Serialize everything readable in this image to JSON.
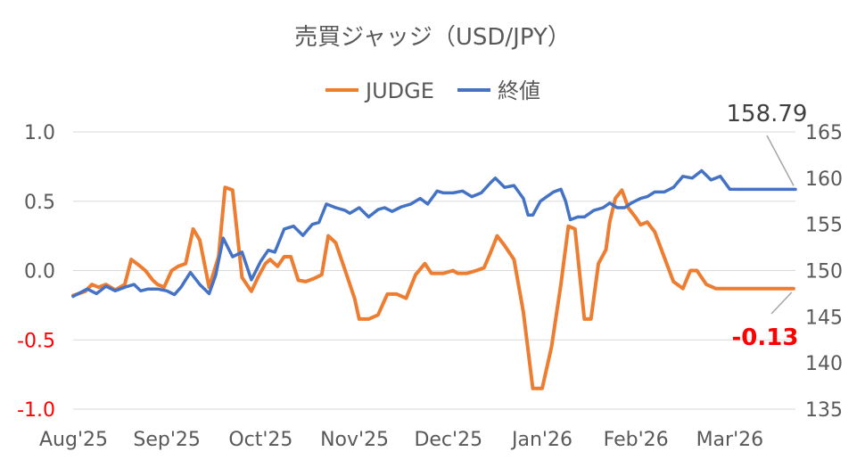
{
  "chart_data": {
    "type": "line",
    "title": "売買ジャッジ（USD/JPY）",
    "legend": {
      "placement": "top"
    },
    "y_left": {
      "ylim": [
        -1.0,
        1.0
      ],
      "ticks": [
        "1.0",
        "0.5",
        "0.0",
        "-0.5",
        "-1.0"
      ],
      "tick_values": [
        1.0,
        0.5,
        0.0,
        -0.5,
        -1.0
      ],
      "negative_tick_color": "#ff0000"
    },
    "y_right": {
      "ylim": [
        135,
        165
      ],
      "ticks": [
        "165",
        "160",
        "155",
        "150",
        "145",
        "140",
        "135"
      ],
      "tick_values": [
        165,
        160,
        155,
        150,
        145,
        140,
        135
      ]
    },
    "x_ticks": [
      "Aug'25",
      "Sep'25",
      "Oct'25",
      "Nov'25",
      "Dec'25",
      "Jan'26",
      "Feb'26",
      "Mar'26"
    ],
    "grid": true,
    "x_range": [
      0,
      7.7
    ],
    "series": [
      {
        "name": "JUDGE",
        "axis": "left",
        "color": "#ed7d31",
        "x": [
          0.0,
          0.13,
          0.2,
          0.27,
          0.35,
          0.45,
          0.55,
          0.62,
          0.7,
          0.77,
          0.85,
          0.9,
          0.97,
          1.05,
          1.12,
          1.2,
          1.28,
          1.35,
          1.45,
          1.55,
          1.62,
          1.7,
          1.8,
          1.9,
          1.97,
          2.05,
          2.1,
          2.18,
          2.25,
          2.32,
          2.4,
          2.48,
          2.56,
          2.65,
          2.72,
          2.8,
          2.9,
          3.0,
          3.05,
          3.15,
          3.25,
          3.35,
          3.45,
          3.55,
          3.65,
          3.75,
          3.82,
          3.95,
          4.05,
          4.1,
          4.2,
          4.3,
          4.38,
          4.45,
          4.52,
          4.6,
          4.7,
          4.8,
          4.9,
          5.0,
          5.1,
          5.2,
          5.28,
          5.35,
          5.45,
          5.52,
          5.6,
          5.68,
          5.72,
          5.78,
          5.85,
          5.92,
          6.0,
          6.05,
          6.12,
          6.2,
          6.3,
          6.4,
          6.5,
          6.58,
          6.65,
          6.75,
          6.85,
          6.95,
          7.05,
          7.15,
          7.25,
          7.3,
          7.4,
          7.5,
          7.6,
          7.68
        ],
        "values": [
          -0.18,
          -0.15,
          -0.1,
          -0.12,
          -0.1,
          -0.14,
          -0.1,
          0.08,
          0.04,
          0.0,
          -0.07,
          -0.1,
          -0.12,
          0.0,
          0.03,
          0.05,
          0.3,
          0.22,
          -0.12,
          0.1,
          0.6,
          0.58,
          -0.05,
          -0.15,
          -0.05,
          0.05,
          0.08,
          0.03,
          0.1,
          0.1,
          -0.07,
          -0.08,
          -0.06,
          -0.03,
          0.25,
          0.2,
          0.0,
          -0.2,
          -0.35,
          -0.35,
          -0.32,
          -0.17,
          -0.17,
          -0.2,
          -0.03,
          0.05,
          -0.02,
          -0.02,
          0.0,
          -0.02,
          -0.02,
          0.0,
          0.02,
          0.13,
          0.25,
          0.18,
          0.08,
          -0.3,
          -0.85,
          -0.85,
          -0.55,
          -0.1,
          0.32,
          0.3,
          -0.35,
          -0.35,
          0.05,
          0.15,
          0.35,
          0.52,
          0.58,
          0.45,
          0.38,
          0.33,
          0.35,
          0.28,
          0.1,
          -0.08,
          -0.13,
          0.0,
          0.0,
          -0.1,
          -0.13,
          -0.13,
          -0.13,
          -0.13,
          -0.13,
          -0.13,
          -0.13,
          -0.13,
          -0.13,
          -0.13
        ]
      },
      {
        "name": "終値",
        "axis": "right",
        "color": "#4472c4",
        "x": [
          0.0,
          0.15,
          0.25,
          0.35,
          0.45,
          0.55,
          0.65,
          0.72,
          0.8,
          0.9,
          1.0,
          1.08,
          1.15,
          1.25,
          1.35,
          1.45,
          1.52,
          1.6,
          1.7,
          1.8,
          1.9,
          2.0,
          2.08,
          2.15,
          2.25,
          2.35,
          2.45,
          2.55,
          2.62,
          2.7,
          2.8,
          2.9,
          2.95,
          3.05,
          3.15,
          3.25,
          3.32,
          3.4,
          3.5,
          3.6,
          3.7,
          3.78,
          3.88,
          3.95,
          4.05,
          4.15,
          4.25,
          4.35,
          4.45,
          4.5,
          4.6,
          4.7,
          4.8,
          4.85,
          4.9,
          4.98,
          5.05,
          5.12,
          5.2,
          5.25,
          5.3,
          5.38,
          5.45,
          5.55,
          5.65,
          5.72,
          5.8,
          5.88,
          5.95,
          6.05,
          6.12,
          6.2,
          6.3,
          6.4,
          6.5,
          6.6,
          6.7,
          6.8,
          6.9,
          7.0,
          7.1,
          7.2,
          7.3,
          7.4,
          7.5,
          7.6,
          7.7
        ],
        "values": [
          147.2,
          148.0,
          147.5,
          148.3,
          147.8,
          148.2,
          148.5,
          147.8,
          148.0,
          148.0,
          147.8,
          147.4,
          148.2,
          149.8,
          148.5,
          147.5,
          149.5,
          153.5,
          151.5,
          152.0,
          149.0,
          151.0,
          152.2,
          152.0,
          154.5,
          154.8,
          153.8,
          155.0,
          155.2,
          157.2,
          156.8,
          156.5,
          156.2,
          156.8,
          155.8,
          156.6,
          156.8,
          156.4,
          156.9,
          157.2,
          157.8,
          157.2,
          158.6,
          158.4,
          158.4,
          158.6,
          158.0,
          158.4,
          159.5,
          160.0,
          159.0,
          159.2,
          157.8,
          156.0,
          156.0,
          157.5,
          158.0,
          158.5,
          158.8,
          157.5,
          155.5,
          155.8,
          155.8,
          156.5,
          156.8,
          157.3,
          156.8,
          156.8,
          157.3,
          157.8,
          158.0,
          158.5,
          158.5,
          159.0,
          160.2,
          160.0,
          160.8,
          159.8,
          160.2,
          158.8,
          158.79,
          158.79,
          158.79,
          158.79,
          158.79,
          158.79,
          158.79
        ]
      }
    ],
    "annotations": [
      {
        "text": "158.79",
        "series": "終値",
        "value": 158.79,
        "color": "#404040"
      },
      {
        "text": "-0.13",
        "series": "JUDGE",
        "value": -0.13,
        "color": "#ff0000"
      }
    ]
  }
}
